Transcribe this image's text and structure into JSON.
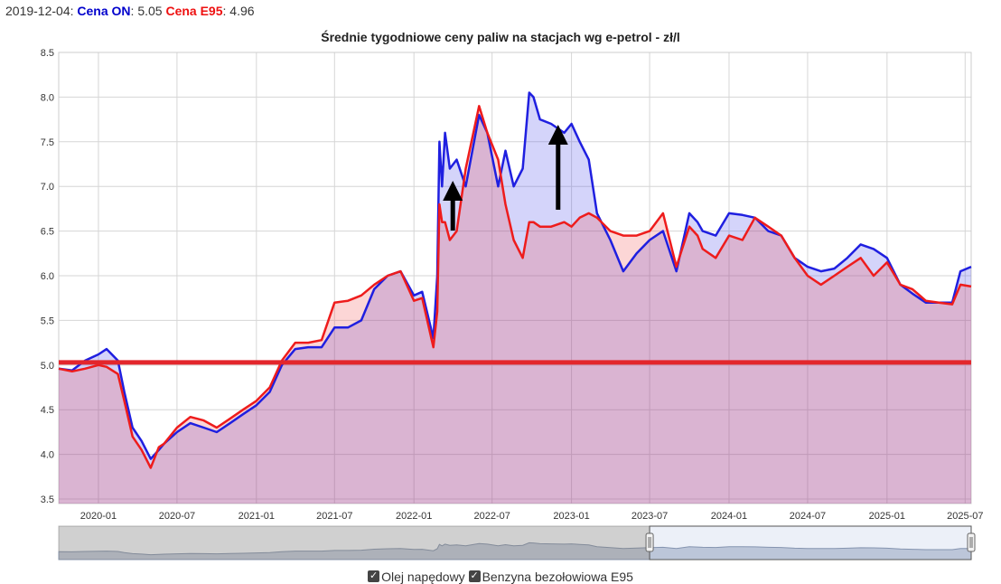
{
  "readout": {
    "date": "2019-12-04",
    "on_label": "Cena ON",
    "on_value": "5.05",
    "e95_label": "Cena E95",
    "e95_value": "4.96"
  },
  "colors": {
    "on": "#1f1fe0",
    "e95": "#ee1c1c",
    "on_fill": "rgba(60,60,230,0.22)",
    "e95_fill": "rgba(240,70,70,0.22)",
    "ref_line": "#e3262c"
  },
  "legend": {
    "on_label": "Olej napędowy",
    "e95_label": "Benzyna bezołowiowa E95",
    "on_checked": true,
    "e95_checked": true
  },
  "chart_data": {
    "type": "area",
    "title": "Średnie tygodniowe ceny paliw na stacjach wg e-petrol - zł/l",
    "xlabel": "",
    "ylabel": "",
    "xlim": [
      "2019-10-01",
      "2025-07-15"
    ],
    "ylim": [
      3.45,
      8.5
    ],
    "y_ticks": [
      3.5,
      4.0,
      4.5,
      5.0,
      5.5,
      6.0,
      6.5,
      7.0,
      7.5,
      8.0,
      8.5
    ],
    "x_ticks": [
      "2020-01",
      "2020-07",
      "2021-01",
      "2021-07",
      "2022-01",
      "2022-07",
      "2023-01",
      "2023-07",
      "2024-01",
      "2024-07",
      "2025-01",
      "2025-07"
    ],
    "grid": true,
    "reference_line": {
      "y": 5.03
    },
    "series": [
      {
        "name": "Olej napędowy",
        "x": [
          "2019-10-01",
          "2019-11-01",
          "2019-12-01",
          "2020-01-01",
          "2020-01-20",
          "2020-02-15",
          "2020-03-01",
          "2020-03-20",
          "2020-04-10",
          "2020-05-01",
          "2020-05-20",
          "2020-06-01",
          "2020-07-01",
          "2020-08-01",
          "2020-09-01",
          "2020-10-01",
          "2020-11-01",
          "2020-12-01",
          "2021-01-01",
          "2021-02-01",
          "2021-03-01",
          "2021-04-01",
          "2021-05-01",
          "2021-06-01",
          "2021-07-01",
          "2021-08-01",
          "2021-09-01",
          "2021-10-01",
          "2021-11-01",
          "2021-12-01",
          "2022-01-01",
          "2022-01-20",
          "2022-02-15",
          "2022-02-24",
          "2022-03-01",
          "2022-03-07",
          "2022-03-14",
          "2022-03-25",
          "2022-04-10",
          "2022-05-01",
          "2022-06-01",
          "2022-06-20",
          "2022-07-15",
          "2022-08-01",
          "2022-08-20",
          "2022-09-10",
          "2022-09-25",
          "2022-10-05",
          "2022-10-20",
          "2022-11-15",
          "2022-12-15",
          "2023-01-01",
          "2023-01-20",
          "2023-02-10",
          "2023-03-01",
          "2023-04-01",
          "2023-05-01",
          "2023-06-01",
          "2023-07-01",
          "2023-08-01",
          "2023-09-01",
          "2023-10-01",
          "2023-10-20",
          "2023-11-01",
          "2023-12-01",
          "2024-01-01",
          "2024-02-01",
          "2024-03-01",
          "2024-04-01",
          "2024-05-01",
          "2024-06-01",
          "2024-07-01",
          "2024-08-01",
          "2024-09-01",
          "2024-10-01",
          "2024-11-01",
          "2024-12-01",
          "2025-01-01",
          "2025-02-01",
          "2025-03-01",
          "2025-04-01",
          "2025-05-01",
          "2025-06-01",
          "2025-06-20",
          "2025-07-15"
        ],
        "values": [
          4.96,
          4.94,
          5.05,
          5.12,
          5.18,
          5.05,
          4.7,
          4.3,
          4.15,
          3.95,
          4.05,
          4.12,
          4.25,
          4.35,
          4.3,
          4.25,
          4.35,
          4.45,
          4.55,
          4.7,
          5.0,
          5.18,
          5.2,
          5.2,
          5.42,
          5.42,
          5.5,
          5.85,
          6.0,
          6.05,
          5.78,
          5.82,
          5.3,
          6.0,
          7.5,
          7.0,
          7.6,
          7.2,
          7.3,
          7.0,
          7.8,
          7.6,
          7.0,
          7.4,
          7.0,
          7.2,
          8.05,
          8.0,
          7.75,
          7.7,
          7.6,
          7.7,
          7.5,
          7.3,
          6.7,
          6.4,
          6.05,
          6.25,
          6.4,
          6.5,
          6.05,
          6.7,
          6.6,
          6.5,
          6.45,
          6.7,
          6.68,
          6.65,
          6.5,
          6.45,
          6.2,
          6.1,
          6.05,
          6.08,
          6.2,
          6.35,
          6.3,
          6.2,
          5.9,
          5.8,
          5.7,
          5.7,
          5.7,
          6.05,
          6.1
        ]
      },
      {
        "name": "Benzyna bezołowiowa E95",
        "x": [
          "2019-10-01",
          "2019-11-01",
          "2019-12-01",
          "2020-01-01",
          "2020-01-20",
          "2020-02-15",
          "2020-03-01",
          "2020-03-20",
          "2020-04-10",
          "2020-05-01",
          "2020-05-20",
          "2020-06-01",
          "2020-07-01",
          "2020-08-01",
          "2020-09-01",
          "2020-10-01",
          "2020-11-01",
          "2020-12-01",
          "2021-01-01",
          "2021-02-01",
          "2021-03-01",
          "2021-04-01",
          "2021-05-01",
          "2021-06-01",
          "2021-07-01",
          "2021-08-01",
          "2021-09-01",
          "2021-10-01",
          "2021-11-01",
          "2021-12-01",
          "2022-01-01",
          "2022-01-20",
          "2022-02-15",
          "2022-02-24",
          "2022-03-01",
          "2022-03-07",
          "2022-03-14",
          "2022-03-25",
          "2022-04-10",
          "2022-05-01",
          "2022-06-01",
          "2022-06-20",
          "2022-07-15",
          "2022-08-01",
          "2022-08-20",
          "2022-09-10",
          "2022-09-25",
          "2022-10-05",
          "2022-10-20",
          "2022-11-15",
          "2022-12-15",
          "2023-01-01",
          "2023-01-20",
          "2023-02-10",
          "2023-03-01",
          "2023-04-01",
          "2023-05-01",
          "2023-06-01",
          "2023-07-01",
          "2023-08-01",
          "2023-09-01",
          "2023-10-01",
          "2023-10-20",
          "2023-11-01",
          "2023-12-01",
          "2024-01-01",
          "2024-02-01",
          "2024-03-01",
          "2024-04-01",
          "2024-05-01",
          "2024-06-01",
          "2024-07-01",
          "2024-08-01",
          "2024-09-01",
          "2024-10-01",
          "2024-11-01",
          "2024-12-01",
          "2025-01-01",
          "2025-02-01",
          "2025-03-01",
          "2025-04-01",
          "2025-05-01",
          "2025-06-01",
          "2025-06-20",
          "2025-07-15"
        ],
        "values": [
          4.96,
          4.93,
          4.96,
          5.0,
          4.98,
          4.9,
          4.6,
          4.2,
          4.05,
          3.85,
          4.08,
          4.12,
          4.3,
          4.42,
          4.38,
          4.3,
          4.4,
          4.5,
          4.6,
          4.75,
          5.05,
          5.25,
          5.25,
          5.28,
          5.7,
          5.72,
          5.78,
          5.9,
          6.0,
          6.05,
          5.72,
          5.75,
          5.2,
          5.6,
          6.8,
          6.6,
          6.6,
          6.4,
          6.5,
          7.2,
          7.9,
          7.6,
          7.3,
          6.8,
          6.4,
          6.2,
          6.6,
          6.6,
          6.55,
          6.55,
          6.6,
          6.55,
          6.65,
          6.7,
          6.65,
          6.5,
          6.45,
          6.45,
          6.5,
          6.7,
          6.1,
          6.55,
          6.45,
          6.3,
          6.2,
          6.45,
          6.4,
          6.65,
          6.55,
          6.45,
          6.2,
          6.0,
          5.9,
          6.0,
          6.1,
          6.2,
          6.0,
          6.15,
          5.9,
          5.85,
          5.72,
          5.7,
          5.68,
          5.9,
          5.88
        ]
      }
    ]
  },
  "navigator": {
    "range_start": "2019-10-01",
    "range_end": "2025-07-15",
    "selected_from": "2023-07-01",
    "selected_to": "2025-07-15"
  },
  "annotations": [
    {
      "type": "arrow-up",
      "x": "2022-04-01"
    },
    {
      "type": "arrow-up",
      "x": "2022-12-01"
    }
  ]
}
